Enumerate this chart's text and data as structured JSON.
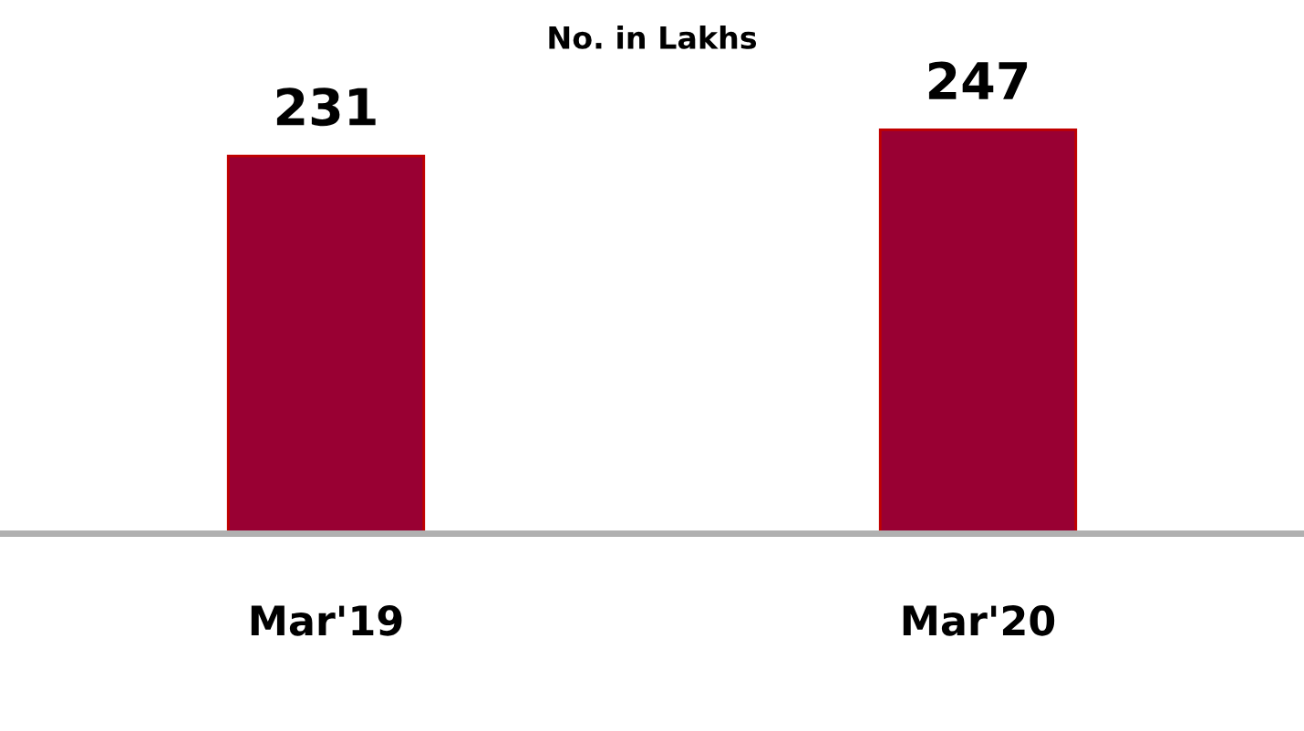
{
  "chart_data": {
    "type": "bar",
    "title": "No. in Lakhs",
    "categories": [
      "Mar'19",
      "Mar'20"
    ],
    "values": [
      231,
      247
    ],
    "color": "#990033",
    "data_labels": true,
    "grid": false,
    "legend": false
  }
}
